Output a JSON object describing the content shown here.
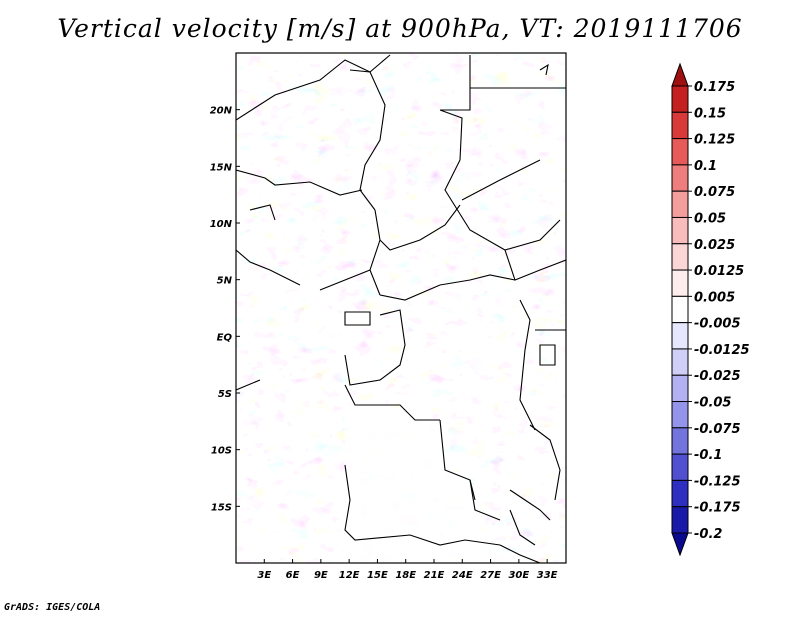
{
  "title": "Vertical velocity [m/s] at 900hPa, VT: 2019111706",
  "credit": "GrADS: IGES/COLA",
  "map": {
    "lon_labels": [
      "3E",
      "6E",
      "9E",
      "12E",
      "15E",
      "18E",
      "21E",
      "24E",
      "27E",
      "30E",
      "33E"
    ],
    "lon_values": [
      3,
      6,
      9,
      12,
      15,
      18,
      21,
      24,
      27,
      30,
      33
    ],
    "lat_labels": [
      "20N",
      "15N",
      "10N",
      "5N",
      "EQ",
      "5S",
      "10S",
      "15S"
    ],
    "lat_values": [
      20,
      15,
      10,
      5,
      0,
      -5,
      -10,
      -15
    ],
    "lon_range": [
      0,
      35
    ],
    "lat_range": [
      -20,
      25
    ]
  },
  "colorbar": {
    "labels": [
      "0.175",
      "0.15",
      "0.125",
      "0.1",
      "0.075",
      "0.05",
      "0.025",
      "0.0125",
      "0.005",
      "-0.005",
      "-0.0125",
      "-0.025",
      "-0.05",
      "-0.075",
      "-0.1",
      "-0.125",
      "-0.175",
      "-0.2"
    ],
    "colors": [
      "#a01010",
      "#c42020",
      "#d83a3a",
      "#e65a5a",
      "#ee7d7d",
      "#f49d9d",
      "#f8bcbc",
      "#fbd6d6",
      "#fdeded",
      "#ffffff",
      "#e6e6fc",
      "#cfcff8",
      "#b2b2f2",
      "#9494ea",
      "#7474de",
      "#5050d0",
      "#2e2ec0",
      "#1a1aa8",
      "#0a0a90"
    ]
  }
}
